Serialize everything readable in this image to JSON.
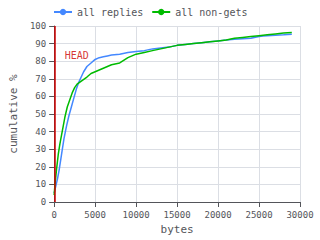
{
  "chart_data": {
    "type": "line",
    "xlabel": "bytes",
    "ylabel": "cumulative %",
    "xlim": [
      0,
      30000
    ],
    "ylim": [
      0,
      100
    ],
    "xticks": [
      0,
      5000,
      10000,
      15000,
      20000,
      25000,
      30000
    ],
    "yticks": [
      0,
      10,
      20,
      30,
      40,
      50,
      60,
      70,
      80,
      90,
      100
    ],
    "grid": true,
    "legend": "upper left",
    "series": [
      {
        "name": "all replies",
        "color": "#4488ff",
        "x": [
          0,
          100,
          200,
          400,
          600,
          800,
          1000,
          1200,
          1500,
          1800,
          2100,
          2400,
          2700,
          3000,
          3300,
          3600,
          4000,
          4500,
          5000,
          5500,
          6000,
          6500,
          7000,
          8000,
          9000,
          10000,
          11000,
          12000,
          13000,
          14000,
          15000,
          16000,
          17000,
          18000,
          19000,
          20000,
          21000,
          22000,
          23000,
          24000,
          25000,
          25500,
          26000,
          27000,
          28000,
          29000
        ],
        "values": [
          5,
          7,
          9,
          13,
          18,
          24,
          30,
          36,
          43,
          49,
          54,
          59,
          64,
          68,
          71,
          74,
          77,
          79,
          81,
          82,
          82.5,
          83,
          83.5,
          84,
          85,
          85.5,
          86,
          87,
          87.5,
          88,
          89,
          89.5,
          90,
          90.5,
          91,
          91.5,
          92,
          92.5,
          92.8,
          93,
          94,
          94.3,
          94.5,
          94.8,
          95,
          95.3
        ]
      },
      {
        "name": "all non-gets",
        "color": "#00bb00",
        "x": [
          0,
          100,
          300,
          500,
          700,
          900,
          1100,
          1300,
          1600,
          1900,
          2200,
          2500,
          2800,
          3100,
          3400,
          3700,
          4000,
          4500,
          5000,
          5500,
          6000,
          7000,
          8000,
          9000,
          10000,
          11000,
          12000,
          13000,
          14000,
          15000,
          16000,
          17000,
          18000,
          19000,
          20000,
          21000,
          22000,
          23000,
          24000,
          25000,
          26000,
          27000,
          28000,
          29000
        ],
        "values": [
          4,
          10,
          19,
          27,
          33,
          38,
          43,
          48,
          54,
          58,
          62,
          65,
          67,
          68,
          69,
          70,
          71,
          73,
          74,
          75,
          76,
          78,
          79,
          82,
          84,
          85,
          86,
          87,
          88,
          89,
          89.5,
          90,
          90.5,
          91,
          91.5,
          92,
          93,
          93.5,
          94,
          94.5,
          95,
          95.5,
          96,
          96.3
        ]
      }
    ],
    "vlines": [
      {
        "x": 50,
        "color": "#cc0000",
        "label": "HEAD",
        "label_x": 1300,
        "label_y": 83
      }
    ]
  }
}
